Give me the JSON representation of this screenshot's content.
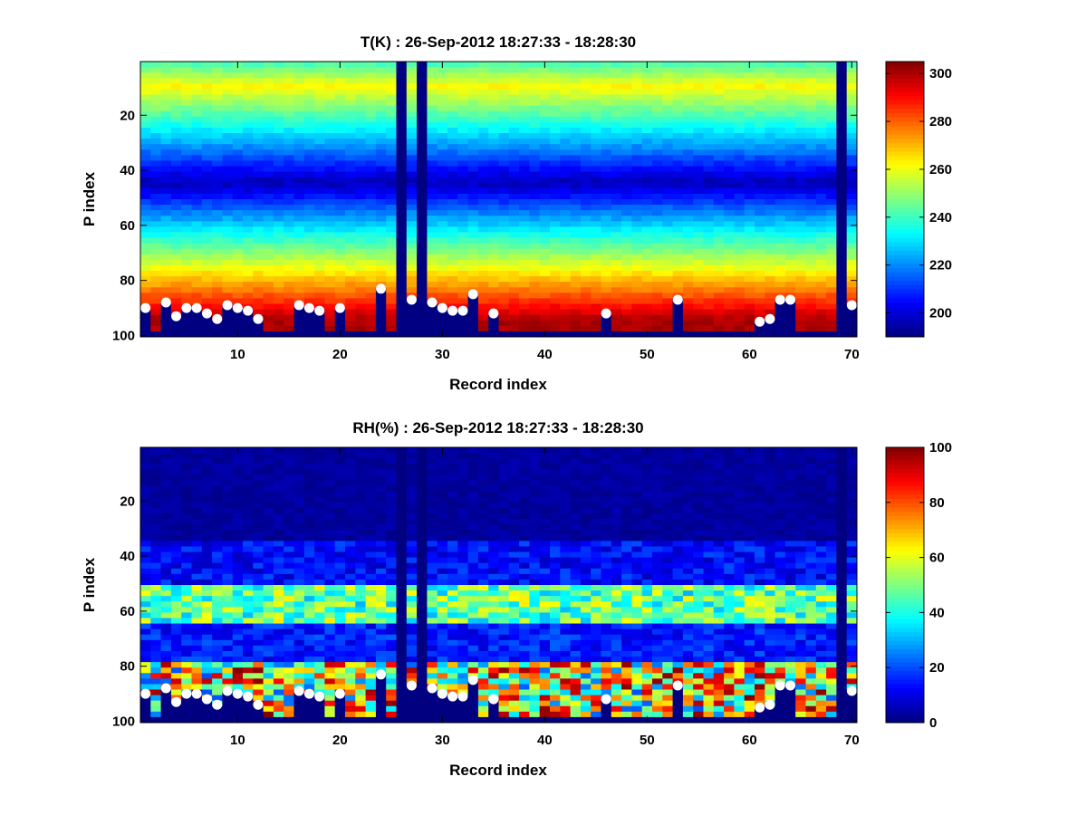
{
  "chart_data": [
    {
      "type": "heatmap",
      "title": "T(K) : 26-Sep-2012 18:27:33 - 18:28:30",
      "xlabel": "Record index",
      "ylabel": "P index",
      "xlim": [
        0.5,
        70.5
      ],
      "ylim": [
        100.5,
        0.5
      ],
      "y_reversed": true,
      "xticks": [
        "10",
        "20",
        "30",
        "40",
        "50",
        "60",
        "70"
      ],
      "yticks": [
        "20",
        "40",
        "60",
        "80",
        "100"
      ],
      "colorbar": {
        "min": 190,
        "max": 305,
        "ticks": [
          "200",
          "220",
          "240",
          "260",
          "280",
          "300"
        ],
        "colormap": "jet"
      },
      "invalid_records": [
        26,
        28,
        69
      ],
      "surface_markers": {
        "records": [
          1,
          3,
          4,
          5,
          6,
          7,
          8,
          9,
          10,
          11,
          12,
          16,
          17,
          18,
          20,
          24,
          27,
          29,
          30,
          31,
          32,
          33,
          35,
          46,
          53,
          61,
          62,
          63,
          64,
          70
        ],
        "p_index": [
          90,
          88,
          93,
          90,
          90,
          92,
          94,
          89,
          90,
          91,
          94,
          89,
          90,
          91,
          90,
          83,
          87,
          88,
          90,
          91,
          91,
          85,
          92,
          92,
          87,
          95,
          94,
          87,
          87,
          89
        ]
      }
    },
    {
      "type": "heatmap",
      "title": "RH(%) : 26-Sep-2012 18:27:33 - 18:28:30",
      "xlabel": "Record index",
      "ylabel": "P index",
      "xlim": [
        0.5,
        70.5
      ],
      "ylim": [
        100.5,
        0.5
      ],
      "y_reversed": true,
      "xticks": [
        "10",
        "20",
        "30",
        "40",
        "50",
        "60",
        "70"
      ],
      "yticks": [
        "20",
        "40",
        "60",
        "80",
        "100"
      ],
      "colorbar": {
        "min": 0,
        "max": 100,
        "ticks": [
          "0",
          "20",
          "40",
          "60",
          "80",
          "100"
        ],
        "colormap": "jet"
      },
      "invalid_records": [
        26,
        28,
        69
      ],
      "surface_markers": {
        "records": [
          1,
          3,
          4,
          5,
          6,
          7,
          8,
          9,
          10,
          11,
          12,
          16,
          17,
          18,
          20,
          24,
          27,
          29,
          30,
          31,
          32,
          33,
          35,
          46,
          53,
          61,
          62,
          63,
          64,
          70
        ],
        "p_index": [
          90,
          88,
          93,
          90,
          90,
          92,
          94,
          89,
          90,
          91,
          94,
          89,
          90,
          91,
          90,
          83,
          87,
          88,
          90,
          91,
          91,
          85,
          92,
          92,
          87,
          95,
          94,
          87,
          87,
          89
        ]
      }
    }
  ]
}
